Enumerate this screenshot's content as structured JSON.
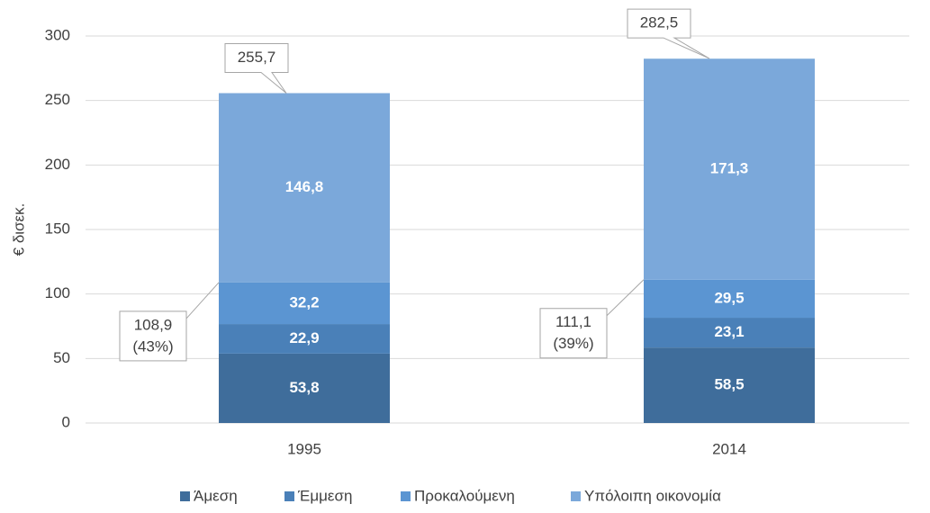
{
  "chart_data": {
    "type": "stacked_bar",
    "y_label": "€ δισεκ.",
    "categories": [
      "1995",
      "2014"
    ],
    "series": [
      {
        "name": "Άμεση",
        "color": "#3f6d9b",
        "values": [
          53.8,
          58.5
        ],
        "value_labels": [
          "53,8",
          "58,5"
        ]
      },
      {
        "name": "Έμμεση",
        "color": "#4a80b8",
        "values": [
          22.9,
          23.1
        ],
        "value_labels": [
          "22,9",
          "23,1"
        ]
      },
      {
        "name": "Προκαλούμενη",
        "color": "#5b95d2",
        "values": [
          32.2,
          29.5
        ],
        "value_labels": [
          "32,2",
          "29,5"
        ]
      },
      {
        "name": "Υπόλοιπη οικονομία",
        "color": "#7ba8da",
        "values": [
          146.8,
          171.3
        ],
        "value_labels": [
          "146,8",
          "171,3"
        ]
      }
    ],
    "totals": [
      255.7,
      282.5
    ],
    "total_labels": [
      "255,7",
      "282,5"
    ],
    "subtotals": [
      108.9,
      111.1
    ],
    "subtotal_labels": [
      "108,9",
      "111,1"
    ],
    "shares": [
      43,
      39
    ],
    "share_labels": [
      "(43%)",
      "(39%)"
    ],
    "ylim": [
      0,
      300
    ],
    "yticks": [
      0,
      50,
      100,
      150,
      200,
      250,
      300
    ],
    "grid": true,
    "legend": "bottom"
  }
}
